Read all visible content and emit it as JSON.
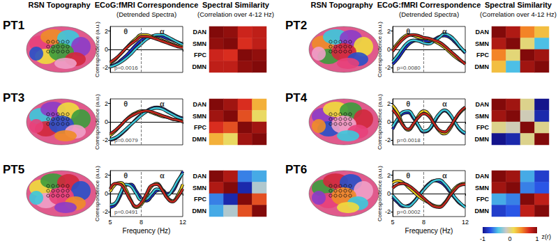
{
  "figure": {
    "column_titles": [
      {
        "text": "RSN Topography"
      },
      {
        "text": "ECoG:fMRI Correspondence",
        "subtext": "(Detrended Spectra)"
      },
      {
        "text": "Spectral Similarity",
        "subtext": "(Correlation over 4-12 Hz)"
      }
    ],
    "colorbar": {
      "label": "z(r)",
      "range": [
        -1,
        1
      ],
      "ticks": [
        -1,
        0,
        1
      ]
    }
  },
  "chart_data": [
    {
      "type": "line",
      "title": "PT1",
      "x": [
        5,
        5.5,
        6,
        6.5,
        7,
        7.5,
        8,
        8.5,
        9,
        9.5,
        10,
        10.5,
        11,
        11.5,
        12
      ],
      "series": [
        {
          "color": "#1a2fc8",
          "values": [
            -1.8,
            -1.6,
            -1.2,
            -0.7,
            -0.1,
            0.5,
            1.0,
            1.3,
            1.45,
            1.5,
            1.4,
            1.2,
            1.0,
            0.8,
            0.6
          ]
        },
        {
          "color": "#3cc8dc",
          "values": [
            -1.9,
            -1.7,
            -1.4,
            -1.0,
            -0.5,
            0.1,
            0.6,
            1.1,
            1.4,
            1.6,
            1.6,
            1.4,
            1.1,
            0.8,
            0.5
          ]
        },
        {
          "color": "#f0d21e",
          "values": [
            -1.5,
            -1.1,
            -0.5,
            0.1,
            0.7,
            1.2,
            1.6,
            1.6,
            1.4,
            1.2,
            1.0,
            0.8,
            0.6,
            0.4,
            0.3
          ]
        },
        {
          "color": "#c8281e",
          "values": [
            -1.4,
            -1.0,
            -0.5,
            0.1,
            0.6,
            1.0,
            1.4,
            1.4,
            1.3,
            1.1,
            0.9,
            0.7,
            0.5,
            0.3,
            0.2
          ]
        }
      ],
      "xlim": [
        5,
        12
      ],
      "xticks": [
        5,
        8,
        12
      ],
      "ylim": [
        -2.5,
        2.5
      ],
      "yticks": [
        -2,
        0,
        2
      ],
      "ylabel": "Correspondence (a.u.)",
      "boundary_x": 8,
      "band_labels": [
        "θ",
        "α"
      ],
      "p_label": "p=0.0016",
      "tick_labels": "y"
    },
    {
      "type": "heatmap",
      "categories": [
        "DAN",
        "SMN",
        "FPC",
        "DMN"
      ],
      "cells": [
        [
          1,
          0.95,
          0.75,
          0.8
        ],
        [
          0.95,
          1,
          0.7,
          0.8
        ],
        [
          0.75,
          0.7,
          1,
          0.95
        ],
        [
          0.8,
          0.8,
          0.95,
          1
        ]
      ],
      "tick_labels": "y"
    },
    {
      "type": "line",
      "title": "PT2",
      "x": [
        5,
        5.5,
        6,
        6.5,
        7,
        7.5,
        8,
        8.5,
        9,
        9.5,
        10,
        10.5,
        11,
        11.5,
        12
      ],
      "series": [
        {
          "color": "#1a2fc8",
          "values": [
            -1.6,
            -1.0,
            -0.2,
            0.5,
            0.9,
            1.0,
            0.9,
            0.9,
            1.1,
            1.4,
            1.5,
            1.3,
            0.8,
            0.2,
            -0.4
          ]
        },
        {
          "color": "#3cc8dc",
          "values": [
            -1.3,
            -0.6,
            0.2,
            0.8,
            1.0,
            0.9,
            0.7,
            0.6,
            0.9,
            1.3,
            1.7,
            1.5,
            1.0,
            0.3,
            -0.3
          ]
        },
        {
          "color": "#f0d21e",
          "values": [
            0.0,
            0.7,
            1.3,
            1.6,
            1.5,
            1.3,
            1.2,
            1.1,
            0.9,
            0.6,
            0.2,
            -0.3,
            -0.8,
            -1.2,
            -1.5
          ]
        },
        {
          "color": "#c8281e",
          "values": [
            -0.2,
            0.5,
            1.1,
            1.5,
            1.6,
            1.5,
            1.3,
            1.2,
            1.0,
            0.8,
            0.4,
            -0.1,
            -0.6,
            -1.1,
            -1.6
          ]
        }
      ],
      "xlim": [
        5,
        12
      ],
      "xticks": [
        5,
        8,
        12
      ],
      "ylim": [
        -2.5,
        2.5
      ],
      "yticks": [
        -2,
        0,
        2
      ],
      "ylabel": "Correspondence (a.u.)",
      "boundary_x": 8,
      "band_labels": [
        "θ",
        "α"
      ],
      "p_label": "p=0.0080",
      "tick_labels": "y"
    },
    {
      "type": "heatmap",
      "categories": [
        "DAN",
        "SMN",
        "FPC",
        "DMN"
      ],
      "cells": [
        [
          1,
          0.85,
          0.45,
          0.25
        ],
        [
          0.85,
          1,
          0.05,
          -0.45
        ],
        [
          0.45,
          0.05,
          1,
          0.9
        ],
        [
          0.25,
          -0.45,
          0.9,
          1
        ]
      ],
      "tick_labels": "y"
    },
    {
      "type": "line",
      "title": "PT3",
      "x": [
        5,
        5.5,
        6,
        6.5,
        7,
        7.5,
        8,
        8.5,
        9,
        9.5,
        10,
        10.5,
        11,
        11.5,
        12
      ],
      "series": [
        {
          "color": "#1a2fc8",
          "values": [
            -2.0,
            -1.8,
            -1.4,
            -0.9,
            -0.3,
            0.3,
            0.8,
            1.2,
            1.5,
            1.6,
            1.5,
            1.2,
            0.9,
            0.6,
            0.4
          ]
        },
        {
          "color": "#3cc8dc",
          "values": [
            -1.9,
            -1.7,
            -1.3,
            -0.8,
            -0.3,
            0.2,
            0.7,
            1.1,
            1.4,
            1.5,
            1.4,
            1.1,
            0.8,
            0.5,
            0.3
          ]
        },
        {
          "color": "#f0d21e",
          "values": [
            -1.5,
            -1.0,
            -0.4,
            0.2,
            0.7,
            1.0,
            1.2,
            1.2,
            1.0,
            0.8,
            0.6,
            0.5,
            0.3,
            0.2,
            0.1
          ]
        },
        {
          "color": "#c8281e",
          "values": [
            -1.3,
            -0.9,
            -0.4,
            0.2,
            0.6,
            0.9,
            1.1,
            1.2,
            1.1,
            0.9,
            0.7,
            0.5,
            0.3,
            0.2,
            0.0
          ]
        }
      ],
      "xlim": [
        5,
        12
      ],
      "xticks": [
        5,
        8,
        12
      ],
      "ylim": [
        -2.5,
        2.5
      ],
      "yticks": [
        -2,
        0,
        2
      ],
      "ylabel": "Correspondence (a.u.)",
      "boundary_x": 8,
      "band_labels": [
        "θ",
        "α"
      ],
      "p_label": "p=0.0079",
      "tick_labels": "y"
    },
    {
      "type": "heatmap",
      "categories": [
        "DAN",
        "SMN",
        "FPC",
        "DMN"
      ],
      "cells": [
        [
          1,
          0.9,
          0.7,
          0.3
        ],
        [
          0.9,
          1,
          0.6,
          0.1
        ],
        [
          0.7,
          0.6,
          1,
          0.9
        ],
        [
          0.3,
          0.1,
          0.9,
          1
        ]
      ],
      "tick_labels": "y"
    },
    {
      "type": "line",
      "title": "PT4",
      "x": [
        5,
        5.5,
        6,
        6.5,
        7,
        7.5,
        8,
        8.5,
        9,
        9.5,
        10,
        10.5,
        11,
        11.5,
        12
      ],
      "series": [
        {
          "color": "#1a2fc8",
          "values": [
            -0.8,
            0.2,
            0.9,
            1.0,
            0.4,
            -0.5,
            -1.1,
            -0.9,
            -0.1,
            0.8,
            1.2,
            0.8,
            -0.1,
            -0.9,
            -1.3
          ]
        },
        {
          "color": "#3cc8dc",
          "values": [
            -0.5,
            0.4,
            1.1,
            1.2,
            0.6,
            -0.4,
            -1.0,
            -0.8,
            0.1,
            0.9,
            1.3,
            0.9,
            0.0,
            -0.8,
            -1.2
          ]
        },
        {
          "color": "#f0d21e",
          "values": [
            1.8,
            1.0,
            -0.3,
            -0.9,
            -0.3,
            0.7,
            1.2,
            0.8,
            -0.2,
            -1.0,
            -1.3,
            -0.8,
            0.2,
            1.0,
            1.5
          ]
        },
        {
          "color": "#c8281e",
          "values": [
            1.3,
            0.6,
            -0.4,
            -0.8,
            -0.2,
            0.5,
            0.9,
            0.6,
            -0.2,
            -0.9,
            -1.1,
            -0.6,
            0.3,
            1.1,
            1.6
          ]
        }
      ],
      "xlim": [
        5,
        12
      ],
      "xticks": [
        5,
        8,
        12
      ],
      "ylim": [
        -2.5,
        2.5
      ],
      "yticks": [
        -2,
        0,
        2
      ],
      "ylabel": "Correspondence (a.u.)",
      "boundary_x": 8,
      "band_labels": [
        "θ",
        "α"
      ],
      "p_label": "p=0.0018",
      "tick_labels": "y"
    },
    {
      "type": "heatmap",
      "categories": [
        "DAN",
        "SMN",
        "FPC",
        "DMN"
      ],
      "cells": [
        [
          1,
          0.9,
          0,
          -1
        ],
        [
          0.9,
          1,
          -0.1,
          -0.9
        ],
        [
          0,
          -0.1,
          1,
          0
        ],
        [
          -1,
          -0.9,
          0,
          1
        ]
      ],
      "tick_labels": "y"
    },
    {
      "type": "line",
      "title": "PT5",
      "x": [
        5,
        5.5,
        6,
        6.5,
        7,
        7.5,
        8,
        8.5,
        9,
        9.5,
        10,
        10.5,
        11,
        11.5,
        12
      ],
      "series": [
        {
          "color": "#1a2fc8",
          "values": [
            -1.5,
            -1.2,
            -0.2,
            0.9,
            1.0,
            0.3,
            -0.5,
            -0.8,
            -0.3,
            0.3,
            0.4,
            0.0,
            0.2,
            1.2,
            2.4
          ]
        },
        {
          "color": "#3cc8dc",
          "values": [
            -1.2,
            -1.0,
            0.1,
            1.0,
            0.8,
            0.0,
            -0.7,
            -0.6,
            0.0,
            0.5,
            0.3,
            -0.2,
            0.4,
            1.4,
            2.2
          ]
        },
        {
          "color": "#f0d21e",
          "values": [
            0.2,
            1.0,
            1.2,
            0.5,
            -0.7,
            -1.5,
            -1.2,
            -0.2,
            0.8,
            1.1,
            0.5,
            -0.4,
            -0.8,
            -0.2,
            1.0
          ]
        },
        {
          "color": "#c8281e",
          "values": [
            0.5,
            1.1,
            1.0,
            0.2,
            -0.8,
            -1.4,
            -1.0,
            0.0,
            0.9,
            1.0,
            0.4,
            -0.5,
            -0.9,
            -0.4,
            0.5
          ]
        }
      ],
      "xlim": [
        5,
        12
      ],
      "xticks": [
        5,
        8,
        12
      ],
      "ylim": [
        -2.5,
        2.5
      ],
      "yticks": [
        -2,
        0,
        2
      ],
      "xlabel": "Frequency (Hz)",
      "ylabel": "Correspondence (a.u.)",
      "boundary_x": 8,
      "band_labels": [
        "θ",
        "α"
      ],
      "p_label": "p=0.0491"
    },
    {
      "type": "heatmap",
      "categories": [
        "DAN",
        "SMN",
        "FPC",
        "DMN"
      ],
      "cells": [
        [
          1,
          0.85,
          -0.6,
          -0.5
        ],
        [
          0.85,
          1,
          -0.9,
          -0.2
        ],
        [
          -0.6,
          -0.9,
          1,
          0.6
        ],
        [
          -0.5,
          -0.2,
          0.6,
          1
        ]
      ],
      "tick_labels": "y"
    },
    {
      "type": "line",
      "title": "PT6",
      "x": [
        5,
        5.5,
        6,
        6.5,
        7,
        7.5,
        8,
        8.5,
        9,
        9.5,
        10,
        10.5,
        11,
        11.5,
        12
      ],
      "series": [
        {
          "color": "#1a2fc8",
          "values": [
            -0.4,
            -1.0,
            -1.4,
            -1.3,
            -0.9,
            -0.2,
            0.5,
            1.1,
            1.4,
            1.3,
            0.9,
            0.2,
            -0.5,
            -1.1,
            -1.4
          ]
        },
        {
          "color": "#3cc8dc",
          "values": [
            -0.2,
            -0.8,
            -1.3,
            -1.4,
            -1.0,
            -0.3,
            0.4,
            1.0,
            1.4,
            1.5,
            1.1,
            0.4,
            -0.4,
            -1.0,
            -1.5
          ]
        },
        {
          "color": "#f0d21e",
          "values": [
            1.2,
            1.4,
            1.2,
            0.7,
            0.2,
            -0.3,
            -0.7,
            -1.0,
            -1.3,
            -1.4,
            -1.0,
            -0.2,
            0.6,
            1.0,
            1.1
          ]
        },
        {
          "color": "#c8281e",
          "values": [
            0.6,
            1.0,
            1.1,
            0.9,
            0.5,
            0.0,
            -0.5,
            -1.0,
            -1.4,
            -1.5,
            -1.1,
            -0.3,
            0.4,
            0.9,
            1.0
          ]
        }
      ],
      "xlim": [
        5,
        12
      ],
      "xticks": [
        5,
        8,
        12
      ],
      "ylim": [
        -2.5,
        2.5
      ],
      "yticks": [
        -2,
        0,
        2
      ],
      "xlabel": "Frequency (Hz)",
      "ylabel": "Correspondence (a.u.)",
      "boundary_x": 8,
      "band_labels": [
        "θ",
        "α"
      ],
      "p_label": "p=0.0002"
    },
    {
      "type": "heatmap",
      "categories": [
        "DAN",
        "SMN",
        "FPC",
        "DMN"
      ],
      "cells": [
        [
          1,
          0.9,
          -0.5,
          -0.8
        ],
        [
          0.9,
          1,
          -0.6,
          -0.7
        ],
        [
          -0.5,
          -0.6,
          1,
          0.8
        ],
        [
          -0.8,
          -0.7,
          0.8,
          1
        ]
      ],
      "tick_labels": "y"
    }
  ]
}
